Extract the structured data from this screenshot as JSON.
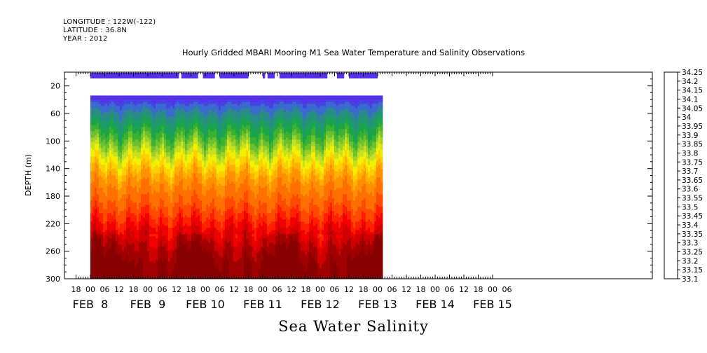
{
  "header": {
    "longitude": "LONGITUDE : 122W(-122)",
    "latitude": "LATITUDE : 36.8N",
    "year": "YEAR : 2012"
  },
  "caption": "Sea Water Salinity",
  "colors": {
    "palette": [
      "#cc00ff",
      "#8a2be2",
      "#6a1fe0",
      "#5530e8",
      "#4444e0",
      "#3a6ad0",
      "#2a8a8a",
      "#1e9a6a",
      "#1aa648",
      "#3cb030",
      "#6cc030",
      "#9ad02a",
      "#c8e020",
      "#f0f000",
      "#ffd000",
      "#ffb000",
      "#ff9000",
      "#ff7000",
      "#ff4a00",
      "#ff2000",
      "#f00000",
      "#d00000",
      "#a00000",
      "#880000"
    ]
  },
  "chart_data": {
    "type": "heatmap",
    "title": "Hourly Gridded MBARI Mooring M1 Sea Water Temperature and Salinity Observations",
    "ylabel": "DEPTH (m)",
    "xlabel": "",
    "ylim": [
      300,
      0
    ],
    "x_hour_ticks": [
      "18",
      "00",
      "06",
      "12",
      "18",
      "00",
      "06",
      "12",
      "18",
      "00",
      "06",
      "12",
      "18",
      "00",
      "06",
      "12",
      "18",
      "00",
      "06",
      "12",
      "18",
      "00",
      "06",
      "12",
      "18",
      "00",
      "06",
      "12",
      "18",
      "00",
      "06"
    ],
    "x_day_labels": [
      "FEB  8",
      "FEB  9",
      "FEB 10",
      "FEB 11",
      "FEB 12",
      "FEB 13",
      "FEB 14",
      "FEB 15"
    ],
    "y_ticks": [
      "20",
      "60",
      "100",
      "140",
      "180",
      "220",
      "260",
      "300"
    ],
    "colorbar_labels": [
      "34.25",
      "34.2",
      "34.15",
      "34.1",
      "34.05",
      "34",
      "33.95",
      "33.9",
      "33.85",
      "33.8",
      "33.75",
      "33.7",
      "33.65",
      "33.6",
      "33.55",
      "33.5",
      "33.45",
      "33.4",
      "33.35",
      "33.3",
      "33.25",
      "33.2",
      "33.15",
      "33.1"
    ],
    "surface_segments_hours": [
      [
        0,
        37
      ],
      [
        38,
        45
      ],
      [
        47,
        52
      ],
      [
        54,
        66
      ],
      [
        72,
        73
      ],
      [
        74,
        77
      ],
      [
        79,
        99
      ],
      [
        103,
        106
      ],
      [
        108,
        120
      ]
    ],
    "surface_value": 33.25,
    "data_start_hour": 0,
    "data_end_hour": 122,
    "depth_top_m": 34,
    "isohaline_depths": [
      {
        "value": 33.3,
        "depth": 40
      },
      {
        "value": 33.4,
        "depth": 60
      },
      {
        "value": 33.5,
        "depth": 80
      },
      {
        "value": 33.6,
        "depth": 100
      },
      {
        "value": 33.7,
        "depth": 115
      },
      {
        "value": 33.8,
        "depth": 135
      },
      {
        "value": 33.9,
        "depth": 155
      },
      {
        "value": 34.0,
        "depth": 200
      },
      {
        "value": 34.1,
        "depth": 225
      },
      {
        "value": 34.2,
        "depth": 255
      }
    ]
  }
}
